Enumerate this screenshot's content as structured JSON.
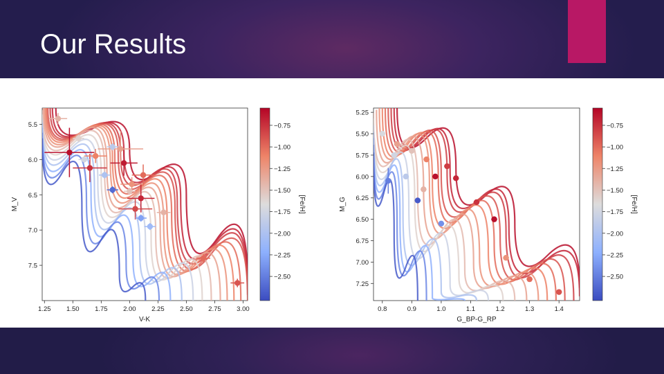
{
  "slide": {
    "title": "Our Results",
    "accent_color": "#b81865"
  },
  "chart_data": [
    {
      "type": "scatter",
      "title": "",
      "xlabel": "V-K",
      "ylabel": "M_V",
      "xlim": [
        1.23,
        3.04
      ],
      "ylim": [
        8.0,
        5.27
      ],
      "xticks": [
        "1.25",
        "1.50",
        "1.75",
        "2.00",
        "2.25",
        "2.50",
        "2.75",
        "3.00"
      ],
      "yticks": [
        "5.5",
        "6.0",
        "6.5",
        "7.0",
        "7.5"
      ],
      "colorbar": {
        "label": "[Fe/H]",
        "range": [
          -2.78,
          -0.55
        ],
        "ticks": [
          "−0.75",
          "−1.00",
          "−1.25",
          "−1.50",
          "−1.75",
          "−2.00",
          "−2.25",
          "−2.50"
        ]
      },
      "isochrones": [
        {
          "feh": -0.6,
          "points": [
            [
              1.35,
              5.27
            ],
            [
              2.0,
              5.85
            ],
            [
              2.5,
              6.5
            ],
            [
              3.04,
              7.75
            ]
          ]
        },
        {
          "feh": -0.7,
          "points": [
            [
              1.32,
              5.27
            ],
            [
              1.95,
              5.88
            ],
            [
              2.45,
              6.55
            ],
            [
              3.04,
              7.85
            ]
          ]
        },
        {
          "feh": -0.8,
          "points": [
            [
              1.3,
              5.27
            ],
            [
              1.92,
              5.9
            ],
            [
              2.42,
              6.6
            ],
            [
              3.04,
              7.92
            ]
          ]
        },
        {
          "feh": -0.9,
          "points": [
            [
              1.28,
              5.27
            ],
            [
              1.9,
              5.93
            ],
            [
              2.4,
              6.67
            ],
            [
              3.04,
              8.0
            ]
          ]
        },
        {
          "feh": -1.0,
          "points": [
            [
              1.27,
              5.27
            ],
            [
              1.87,
              5.96
            ],
            [
              2.37,
              6.75
            ],
            [
              2.98,
              8.0
            ]
          ]
        },
        {
          "feh": -1.1,
          "points": [
            [
              1.26,
              5.27
            ],
            [
              1.85,
              6.0
            ],
            [
              2.33,
              6.82
            ],
            [
              2.92,
              8.0
            ]
          ]
        },
        {
          "feh": -1.2,
          "points": [
            [
              1.25,
              5.27
            ],
            [
              1.83,
              6.05
            ],
            [
              2.3,
              6.9
            ],
            [
              2.86,
              8.0
            ]
          ]
        },
        {
          "feh": -1.3,
          "points": [
            [
              1.24,
              5.27
            ],
            [
              1.8,
              6.1
            ],
            [
              2.27,
              6.98
            ],
            [
              2.8,
              8.0
            ]
          ]
        },
        {
          "feh": -1.45,
          "points": [
            [
              1.23,
              5.3
            ],
            [
              1.78,
              6.16
            ],
            [
              2.23,
              7.05
            ],
            [
              2.72,
              8.0
            ]
          ]
        },
        {
          "feh": -1.6,
          "points": [
            [
              1.23,
              5.36
            ],
            [
              1.75,
              6.22
            ],
            [
              2.19,
              7.12
            ],
            [
              2.64,
              8.0
            ]
          ]
        },
        {
          "feh": -1.8,
          "points": [
            [
              1.23,
              5.42
            ],
            [
              1.72,
              6.3
            ],
            [
              2.14,
              7.2
            ],
            [
              2.56,
              8.0
            ]
          ]
        },
        {
          "feh": -2.0,
          "points": [
            [
              1.23,
              5.48
            ],
            [
              1.69,
              6.38
            ],
            [
              2.09,
              7.3
            ],
            [
              2.46,
              8.0
            ]
          ]
        },
        {
          "feh": -2.2,
          "points": [
            [
              1.23,
              5.55
            ],
            [
              1.66,
              6.48
            ],
            [
              2.03,
              7.4
            ],
            [
              2.36,
              8.0
            ]
          ]
        },
        {
          "feh": -2.45,
          "points": [
            [
              1.23,
              5.62
            ],
            [
              1.62,
              6.58
            ],
            [
              1.97,
              7.5
            ],
            [
              2.26,
              8.0
            ]
          ]
        },
        {
          "feh": -2.7,
          "points": [
            [
              1.23,
              5.7
            ],
            [
              1.58,
              6.68
            ],
            [
              1.91,
              7.62
            ],
            [
              2.14,
              8.0
            ]
          ]
        }
      ],
      "stars": [
        {
          "x": 1.47,
          "y": 5.9,
          "feh": -0.6,
          "xerr": 0.22,
          "yerr": 0.35
        },
        {
          "x": 1.65,
          "y": 6.12,
          "feh": -0.75,
          "xerr": 0.15,
          "yerr": 0.2
        },
        {
          "x": 1.95,
          "y": 6.05,
          "feh": -0.65,
          "xerr": 0.12,
          "yerr": 0.18
        },
        {
          "x": 2.1,
          "y": 6.55,
          "feh": -0.7,
          "xerr": 0.12,
          "yerr": 0.2
        },
        {
          "x": 2.05,
          "y": 6.7,
          "feh": -0.85,
          "xerr": 0.15,
          "yerr": 0.15
        },
        {
          "x": 2.12,
          "y": 6.22,
          "feh": -1.0,
          "xerr": 0.1,
          "yerr": 0.15
        },
        {
          "x": 1.92,
          "y": 5.85,
          "feh": -1.3,
          "xerr": 0.2,
          "yerr": 0.25
        },
        {
          "x": 1.37,
          "y": 5.42,
          "feh": -1.4,
          "xerr": 0.08,
          "yerr": 0.08
        },
        {
          "x": 1.55,
          "y": 5.7,
          "feh": -1.6,
          "xerr": 0.05,
          "yerr": 0.05
        },
        {
          "x": 1.85,
          "y": 5.82,
          "feh": -1.9,
          "xerr": 0.05,
          "yerr": 0.05
        },
        {
          "x": 1.78,
          "y": 6.22,
          "feh": -2.0,
          "xerr": 0.05,
          "yerr": 0.05
        },
        {
          "x": 1.85,
          "y": 6.43,
          "feh": -2.6,
          "xerr": 0.05,
          "yerr": 0.05
        },
        {
          "x": 2.1,
          "y": 6.83,
          "feh": -2.3,
          "xerr": 0.05,
          "yerr": 0.05
        },
        {
          "x": 2.18,
          "y": 6.95,
          "feh": -2.1,
          "xerr": 0.05,
          "yerr": 0.05
        },
        {
          "x": 1.7,
          "y": 5.95,
          "feh": -1.1,
          "xerr": 0.1,
          "yerr": 0.1
        },
        {
          "x": 2.02,
          "y": 6.35,
          "feh": -1.2,
          "xerr": 0.1,
          "yerr": 0.1
        },
        {
          "x": 2.65,
          "y": 7.4,
          "feh": -1.0,
          "xerr": 0.06,
          "yerr": 0.06
        },
        {
          "x": 2.95,
          "y": 7.75,
          "feh": -0.9,
          "xerr": 0.06,
          "yerr": 0.06
        },
        {
          "x": 2.3,
          "y": 6.75,
          "feh": -1.4,
          "xerr": 0.06,
          "yerr": 0.06
        },
        {
          "x": 1.6,
          "y": 6.0,
          "feh": -1.75,
          "xerr": 0.05,
          "yerr": 0.05
        },
        {
          "x": 2.0,
          "y": 6.45,
          "feh": -1.5,
          "xerr": 0.05,
          "yerr": 0.05
        }
      ]
    },
    {
      "type": "scatter",
      "title": "",
      "xlabel": "G_BP-G_RP",
      "ylabel": "M_G",
      "xlim": [
        0.77,
        1.47
      ],
      "ylim": [
        7.45,
        5.2
      ],
      "xticks": [
        "0.8",
        "0.9",
        "1.0",
        "1.1",
        "1.2",
        "1.3",
        "1.4"
      ],
      "yticks": [
        "5.25",
        "5.50",
        "5.75",
        "6.00",
        "6.25",
        "6.50",
        "6.75",
        "7.00",
        "7.25"
      ],
      "colorbar": {
        "label": "[Fe/H]",
        "range": [
          -2.78,
          -0.55
        ],
        "ticks": [
          "−0.75",
          "−1.00",
          "−1.25",
          "−1.50",
          "−1.75",
          "−2.00",
          "−2.25",
          "−2.50"
        ]
      },
      "isochrones": [
        {
          "feh": -0.6,
          "points": [
            [
              0.85,
              5.2
            ],
            [
              1.05,
              5.9
            ],
            [
              1.25,
              6.55
            ],
            [
              1.47,
              7.3
            ]
          ]
        },
        {
          "feh": -0.7,
          "points": [
            [
              0.84,
              5.2
            ],
            [
              1.03,
              5.92
            ],
            [
              1.23,
              6.6
            ],
            [
              1.47,
              7.4
            ]
          ]
        },
        {
          "feh": -0.8,
          "points": [
            [
              0.83,
              5.2
            ],
            [
              1.02,
              5.95
            ],
            [
              1.22,
              6.65
            ],
            [
              1.45,
              7.45
            ]
          ]
        },
        {
          "feh": -0.9,
          "points": [
            [
              0.82,
              5.2
            ],
            [
              1.0,
              5.98
            ],
            [
              1.2,
              6.72
            ],
            [
              1.42,
              7.45
            ]
          ]
        },
        {
          "feh": -1.0,
          "points": [
            [
              0.81,
              5.2
            ],
            [
              0.99,
              6.02
            ],
            [
              1.18,
              6.8
            ],
            [
              1.39,
              7.45
            ]
          ]
        },
        {
          "feh": -1.1,
          "points": [
            [
              0.8,
              5.2
            ],
            [
              0.97,
              6.06
            ],
            [
              1.16,
              6.88
            ],
            [
              1.36,
              7.45
            ]
          ]
        },
        {
          "feh": -1.2,
          "points": [
            [
              0.79,
              5.2
            ],
            [
              0.96,
              6.1
            ],
            [
              1.13,
              6.95
            ],
            [
              1.33,
              7.45
            ]
          ]
        },
        {
          "feh": -1.3,
          "points": [
            [
              0.78,
              5.22
            ],
            [
              0.94,
              6.15
            ],
            [
              1.11,
              7.02
            ],
            [
              1.29,
              7.45
            ]
          ]
        },
        {
          "feh": -1.45,
          "points": [
            [
              0.77,
              5.25
            ],
            [
              0.92,
              6.2
            ],
            [
              1.08,
              7.1
            ],
            [
              1.25,
              7.45
            ]
          ]
        },
        {
          "feh": -1.6,
          "points": [
            [
              0.77,
              5.32
            ],
            [
              0.91,
              6.27
            ],
            [
              1.06,
              7.18
            ],
            [
              1.21,
              7.45
            ]
          ]
        },
        {
          "feh": -1.8,
          "points": [
            [
              0.77,
              5.4
            ],
            [
              0.89,
              6.35
            ],
            [
              1.03,
              7.27
            ],
            [
              1.16,
              7.45
            ]
          ]
        },
        {
          "feh": -2.0,
          "points": [
            [
              0.77,
              5.48
            ],
            [
              0.87,
              6.42
            ],
            [
              1.0,
              7.35
            ],
            [
              1.12,
              7.45
            ]
          ]
        },
        {
          "feh": -2.2,
          "points": [
            [
              0.77,
              5.55
            ],
            [
              0.86,
              6.5
            ],
            [
              0.97,
              7.42
            ],
            [
              1.08,
              7.45
            ]
          ]
        },
        {
          "feh": -2.45,
          "points": [
            [
              0.77,
              5.63
            ],
            [
              0.85,
              6.58
            ],
            [
              0.95,
              7.45
            ]
          ]
        },
        {
          "feh": -2.7,
          "points": [
            [
              0.77,
              5.72
            ],
            [
              0.84,
              6.66
            ],
            [
              0.92,
              7.45
            ]
          ]
        }
      ],
      "stars": [
        {
          "x": 0.82,
          "y": 6.05,
          "feh": -2.5,
          "xerr": 0.01,
          "yerr": 0.15
        },
        {
          "x": 0.92,
          "y": 6.28,
          "feh": -2.7,
          "xerr": 0.01,
          "yerr": 0.01
        },
        {
          "x": 0.98,
          "y": 6.0,
          "feh": -0.6,
          "xerr": 0.01,
          "yerr": 0.01
        },
        {
          "x": 1.0,
          "y": 6.55,
          "feh": -2.4,
          "xerr": 0.01,
          "yerr": 0.01
        },
        {
          "x": 1.18,
          "y": 6.5,
          "feh": -0.6,
          "xerr": 0.01,
          "yerr": 0.01
        },
        {
          "x": 1.02,
          "y": 5.88,
          "feh": -0.8,
          "xerr": 0.01,
          "yerr": 0.01
        },
        {
          "x": 0.95,
          "y": 5.8,
          "feh": -1.1,
          "xerr": 0.01,
          "yerr": 0.01
        },
        {
          "x": 0.85,
          "y": 5.62,
          "feh": -1.3,
          "xerr": 0.01,
          "yerr": 0.01
        },
        {
          "x": 0.8,
          "y": 5.5,
          "feh": -1.7,
          "xerr": 0.01,
          "yerr": 0.01
        },
        {
          "x": 0.88,
          "y": 6.0,
          "feh": -1.9,
          "xerr": 0.01,
          "yerr": 0.01
        },
        {
          "x": 1.05,
          "y": 6.02,
          "feh": -0.7,
          "xerr": 0.01,
          "yerr": 0.01
        },
        {
          "x": 1.12,
          "y": 6.3,
          "feh": -0.75,
          "xerr": 0.01,
          "yerr": 0.01
        },
        {
          "x": 1.3,
          "y": 7.2,
          "feh": -1.0,
          "xerr": 0.01,
          "yerr": 0.01
        },
        {
          "x": 1.4,
          "y": 7.35,
          "feh": -0.9,
          "xerr": 0.01,
          "yerr": 0.01
        },
        {
          "x": 1.22,
          "y": 6.95,
          "feh": -1.2,
          "xerr": 0.01,
          "yerr": 0.01
        },
        {
          "x": 0.9,
          "y": 5.7,
          "feh": -1.5,
          "xerr": 0.01,
          "yerr": 0.01
        },
        {
          "x": 0.84,
          "y": 5.75,
          "feh": -1.75,
          "xerr": 0.01,
          "yerr": 0.01
        },
        {
          "x": 0.94,
          "y": 6.15,
          "feh": -1.4,
          "xerr": 0.01,
          "yerr": 0.01
        }
      ]
    }
  ]
}
